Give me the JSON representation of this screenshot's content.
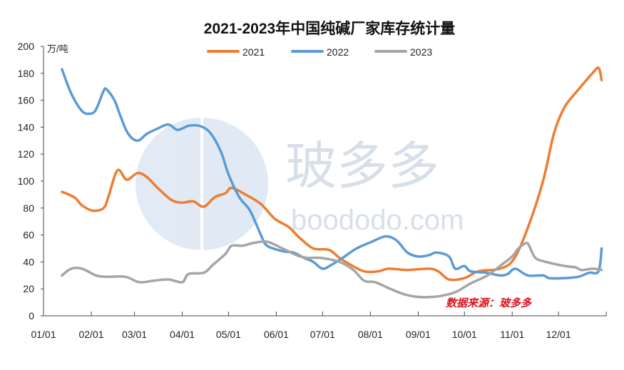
{
  "chart_data": {
    "type": "line",
    "title": "2021-2023年中国纯碱厂家库存统计量",
    "ylabel": "万/吨",
    "ylim": [
      0,
      200
    ],
    "yticks": [
      0,
      20,
      40,
      60,
      80,
      100,
      120,
      140,
      160,
      180,
      200
    ],
    "xticks": [
      "01/01",
      "02/01",
      "03/01",
      "04/01",
      "05/01",
      "06/01",
      "07/01",
      "08/01",
      "09/01",
      "10/01",
      "11/01",
      "12/01"
    ],
    "grid": false,
    "legend": "top-center",
    "source": "数据来源：玻多多",
    "watermark": {
      "logo_text": "玻多多",
      "url_text": "boododo.com"
    },
    "series": [
      {
        "name": "2021",
        "color": "#ed7d31",
        "points": [
          [
            "01/13",
            92
          ],
          [
            "01/21",
            88
          ],
          [
            "01/26",
            82
          ],
          [
            "02/02",
            78
          ],
          [
            "02/09",
            80
          ],
          [
            "02/12",
            88
          ],
          [
            "02/18",
            108
          ],
          [
            "02/24",
            101
          ],
          [
            "03/03",
            106
          ],
          [
            "03/09",
            103
          ],
          [
            "03/16",
            95
          ],
          [
            "03/25",
            86
          ],
          [
            "04/01",
            84
          ],
          [
            "04/08",
            85
          ],
          [
            "04/15",
            81
          ],
          [
            "04/22",
            88
          ],
          [
            "04/29",
            91
          ],
          [
            "05/03",
            95
          ],
          [
            "05/12",
            90
          ],
          [
            "05/22",
            83
          ],
          [
            "05/31",
            72
          ],
          [
            "06/09",
            66
          ],
          [
            "06/16",
            58
          ],
          [
            "06/25",
            50
          ],
          [
            "07/05",
            49
          ],
          [
            "07/12",
            43
          ],
          [
            "07/19",
            38
          ],
          [
            "07/28",
            33
          ],
          [
            "08/06",
            33
          ],
          [
            "08/13",
            35
          ],
          [
            "08/25",
            34
          ],
          [
            "09/08",
            35
          ],
          [
            "09/14",
            33
          ],
          [
            "09/21",
            27
          ],
          [
            "10/01",
            28
          ],
          [
            "10/10",
            33
          ],
          [
            "10/24",
            35
          ],
          [
            "11/02",
            42
          ],
          [
            "11/11",
            65
          ],
          [
            "11/21",
            100
          ],
          [
            "11/28",
            135
          ],
          [
            "12/05",
            155
          ],
          [
            "12/14",
            168
          ],
          [
            "12/23",
            180
          ],
          [
            "12/27",
            184
          ],
          [
            "12/29",
            175
          ]
        ]
      },
      {
        "name": "2022",
        "color": "#5b9bd5",
        "points": [
          [
            "01/13",
            183
          ],
          [
            "01/19",
            165
          ],
          [
            "01/26",
            152
          ],
          [
            "01/31",
            150
          ],
          [
            "02/04",
            153
          ],
          [
            "02/09",
            167
          ],
          [
            "02/11",
            168
          ],
          [
            "02/16",
            160
          ],
          [
            "02/20",
            148
          ],
          [
            "02/25",
            135
          ],
          [
            "03/03",
            130
          ],
          [
            "03/09",
            135
          ],
          [
            "03/16",
            139
          ],
          [
            "03/23",
            142
          ],
          [
            "03/29",
            138
          ],
          [
            "04/05",
            141
          ],
          [
            "04/12",
            141
          ],
          [
            "04/19",
            136
          ],
          [
            "04/26",
            122
          ],
          [
            "05/01",
            105
          ],
          [
            "05/08",
            88
          ],
          [
            "05/15",
            78
          ],
          [
            "05/22",
            60
          ],
          [
            "05/26",
            52
          ],
          [
            "06/05",
            48
          ],
          [
            "06/12",
            47
          ],
          [
            "06/19",
            43
          ],
          [
            "06/25",
            40
          ],
          [
            "07/01",
            35
          ],
          [
            "07/07",
            38
          ],
          [
            "07/14",
            43
          ],
          [
            "07/23",
            50
          ],
          [
            "08/02",
            55
          ],
          [
            "08/11",
            59
          ],
          [
            "08/18",
            56
          ],
          [
            "08/25",
            47
          ],
          [
            "09/01",
            44
          ],
          [
            "09/08",
            45
          ],
          [
            "09/13",
            47
          ],
          [
            "09/21",
            44
          ],
          [
            "09/25",
            35
          ],
          [
            "10/01",
            37
          ],
          [
            "10/05",
            33
          ],
          [
            "10/15",
            32
          ],
          [
            "10/24",
            30
          ],
          [
            "10/29",
            31
          ],
          [
            "11/03",
            35
          ],
          [
            "11/11",
            30
          ],
          [
            "11/21",
            30
          ],
          [
            "11/25",
            28
          ],
          [
            "12/05",
            28
          ],
          [
            "12/14",
            29
          ],
          [
            "12/21",
            32
          ],
          [
            "12/27",
            33
          ],
          [
            "12/29",
            50
          ]
        ]
      },
      {
        "name": "2023",
        "color": "#a5a5a5",
        "points": [
          [
            "01/13",
            30
          ],
          [
            "01/19",
            35
          ],
          [
            "01/26",
            35
          ],
          [
            "02/04",
            30
          ],
          [
            "02/11",
            29
          ],
          [
            "02/23",
            29
          ],
          [
            "03/04",
            25
          ],
          [
            "03/13",
            26
          ],
          [
            "03/23",
            27
          ],
          [
            "04/01",
            25
          ],
          [
            "04/05",
            31
          ],
          [
            "04/15",
            32
          ],
          [
            "04/21",
            38
          ],
          [
            "04/29",
            46
          ],
          [
            "05/03",
            52
          ],
          [
            "05/10",
            52
          ],
          [
            "05/17",
            54
          ],
          [
            "05/26",
            55
          ],
          [
            "06/05",
            50
          ],
          [
            "06/14",
            45
          ],
          [
            "06/21",
            43
          ],
          [
            "06/30",
            43
          ],
          [
            "07/12",
            40
          ],
          [
            "07/21",
            34
          ],
          [
            "07/28",
            26
          ],
          [
            "08/04",
            25
          ],
          [
            "08/14",
            20
          ],
          [
            "08/23",
            16
          ],
          [
            "09/01",
            14
          ],
          [
            "09/10",
            14
          ],
          [
            "09/17",
            15
          ],
          [
            "09/26",
            18
          ],
          [
            "10/05",
            24
          ],
          [
            "10/16",
            30
          ],
          [
            "10/24",
            37
          ],
          [
            "11/01",
            44
          ],
          [
            "11/05",
            50
          ],
          [
            "11/10",
            54
          ],
          [
            "11/12",
            52
          ],
          [
            "11/16",
            43
          ],
          [
            "11/23",
            40
          ],
          [
            "12/05",
            37
          ],
          [
            "12/12",
            36
          ],
          [
            "12/16",
            34
          ],
          [
            "12/23",
            35
          ],
          [
            "12/29",
            34
          ]
        ]
      }
    ]
  }
}
